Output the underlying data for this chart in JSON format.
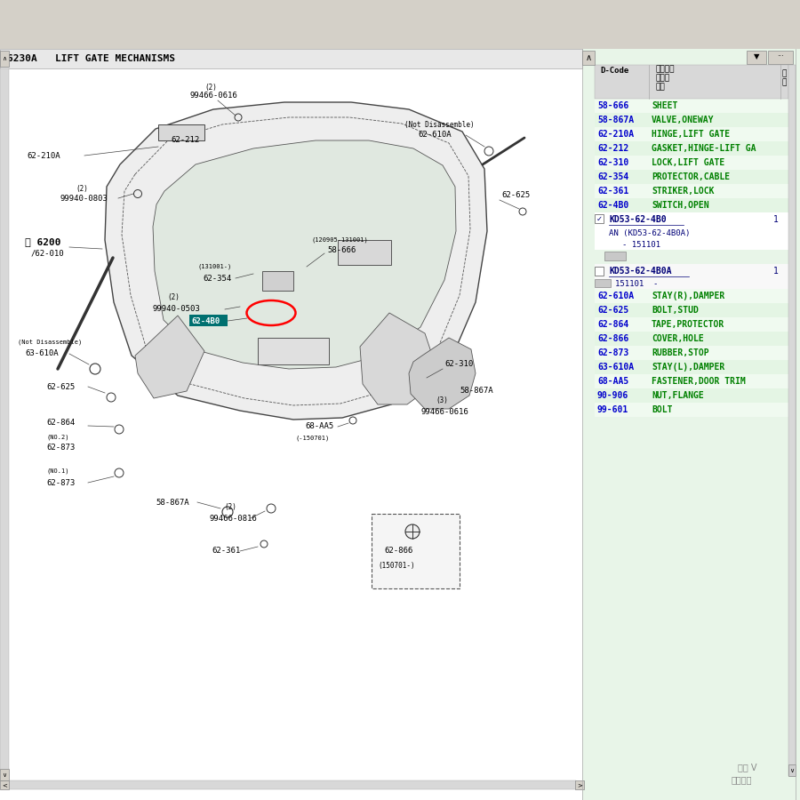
{
  "title": "6230A   LIFT GATE MECHANISMS",
  "bg_color": "#f2f2f2",
  "diagram_bg": "#ffffff",
  "panel_bg": "#e8f5e8",
  "toolbar_bg": "#d4d0c8",
  "code_color": "#0000cc",
  "name_color": "#008000",
  "black": "#000000",
  "gray": "#888888",
  "dark_gray": "#555555",
  "parts_list": [
    {
      "code": "58-666",
      "name": "SHEET"
    },
    {
      "code": "58-867A",
      "name": "VALVE,ONEWAY"
    },
    {
      "code": "62-210A",
      "name": "HINGE,LIFT GATE"
    },
    {
      "code": "62-212",
      "name": "GASKET,HINGE-LIFT GA"
    },
    {
      "code": "62-310",
      "name": "LOCK,LIFT GATE"
    },
    {
      "code": "62-354",
      "name": "PROTECTOR,CABLE"
    },
    {
      "code": "62-361",
      "name": "STRIKER,LOCK"
    },
    {
      "code": "62-4B0",
      "name": "SWITCH,OPEN"
    },
    {
      "code": "62-610A",
      "name": "STAY(R),DAMPER"
    },
    {
      "code": "62-625",
      "name": "BOLT,STUD"
    },
    {
      "code": "62-864",
      "name": "TAPE,PROTECTOR"
    },
    {
      "code": "62-866",
      "name": "COVER,HOLE"
    },
    {
      "code": "62-873",
      "name": "RUBBER,STOP"
    },
    {
      "code": "63-610A",
      "name": "STAY(L),DAMPER"
    },
    {
      "code": "68-AA5",
      "name": "FASTENER,DOOR TRIM"
    },
    {
      "code": "90-906",
      "name": "NUT,FLANGE"
    },
    {
      "code": "99-601",
      "name": "BOLT"
    }
  ]
}
